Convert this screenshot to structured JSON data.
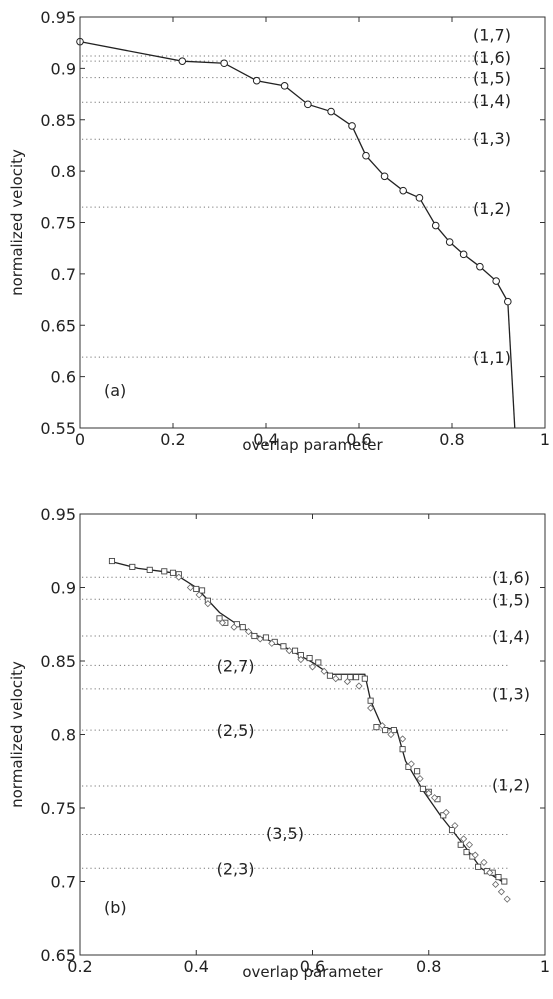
{
  "chart_data": [
    {
      "type": "line",
      "panel_label": "(a)",
      "xlabel": "overlap parameter",
      "ylabel": "normalized velocity",
      "xlim": [
        0,
        1
      ],
      "ylim": [
        0.55,
        0.95
      ],
      "xticks": [
        "0",
        "0.2",
        "0.4",
        "0.6",
        "0.8",
        "1"
      ],
      "yticks": [
        "0.55",
        "0.6",
        "0.65",
        "0.7",
        "0.75",
        "0.8",
        "0.85",
        "0.9",
        "0.95"
      ],
      "series": [
        {
          "marker": "circle",
          "x": [
            0.0,
            0.22,
            0.31,
            0.38,
            0.44,
            0.49,
            0.54,
            0.585,
            0.615,
            0.655,
            0.695,
            0.73,
            0.765,
            0.795,
            0.825,
            0.86,
            0.895,
            0.92
          ],
          "y": [
            0.926,
            0.907,
            0.905,
            0.888,
            0.883,
            0.865,
            0.858,
            0.844,
            0.815,
            0.795,
            0.781,
            0.774,
            0.747,
            0.731,
            0.719,
            0.707,
            0.693,
            0.673
          ]
        }
      ],
      "tail_line": {
        "x": [
          0.92,
          0.935
        ],
        "y": [
          0.673,
          0.55
        ]
      },
      "mode_lines": [
        {
          "label": "(1,7)",
          "y": 0.912
        },
        {
          "label": "(1,6)",
          "y": 0.907
        },
        {
          "label": "(1,5)",
          "y": 0.891
        },
        {
          "label": "(1,4)",
          "y": 0.867
        },
        {
          "label": "(1,3)",
          "y": 0.831
        },
        {
          "label": "(1,2)",
          "y": 0.765
        },
        {
          "label": "(1,1)",
          "y": 0.619
        }
      ],
      "mode_label_y": {
        "(1,7)": 0.933,
        "(1,6)": 0.911,
        "(1,5)": 0.891,
        "(1,4)": 0.869,
        "(1,3)": 0.832,
        "(1,2)": 0.764,
        "(1,1)": 0.619
      }
    },
    {
      "type": "line",
      "panel_label": "(b)",
      "xlabel": "overlap parameter",
      "ylabel": "normalized velocity",
      "xlim": [
        0.2,
        1
      ],
      "ylim": [
        0.65,
        0.95
      ],
      "xticks": [
        "0.2",
        "0.4",
        "0.6",
        "0.8",
        "1"
      ],
      "yticks": [
        "0.65",
        "0.7",
        "0.75",
        "0.8",
        "0.85",
        "0.9",
        "0.95"
      ],
      "series": [
        {
          "marker": "square",
          "x": [
            0.255,
            0.29,
            0.32,
            0.345,
            0.36,
            0.37,
            0.4,
            0.41,
            0.42,
            0.44,
            0.45,
            0.47,
            0.48,
            0.5,
            0.52,
            0.535,
            0.55,
            0.57,
            0.58,
            0.595,
            0.61,
            0.63,
            0.645,
            0.665,
            0.675,
            0.69,
            0.7,
            0.71,
            0.725,
            0.74,
            0.755,
            0.765,
            0.78,
            0.79,
            0.8,
            0.815,
            0.825,
            0.84,
            0.855,
            0.865,
            0.875,
            0.885,
            0.9,
            0.91,
            0.92,
            0.93
          ],
          "y": [
            0.918,
            0.914,
            0.912,
            0.911,
            0.91,
            0.909,
            0.899,
            0.898,
            0.891,
            0.879,
            0.876,
            0.875,
            0.873,
            0.867,
            0.866,
            0.863,
            0.86,
            0.857,
            0.854,
            0.852,
            0.849,
            0.84,
            0.839,
            0.839,
            0.839,
            0.838,
            0.823,
            0.805,
            0.803,
            0.803,
            0.79,
            0.778,
            0.775,
            0.763,
            0.761,
            0.756,
            0.745,
            0.735,
            0.725,
            0.72,
            0.717,
            0.71,
            0.707,
            0.706,
            0.703,
            0.7
          ]
        },
        {
          "marker": "diamond",
          "x": [
            0.37,
            0.39,
            0.405,
            0.42,
            0.445,
            0.465,
            0.49,
            0.51,
            0.53,
            0.56,
            0.58,
            0.6,
            0.62,
            0.64,
            0.66,
            0.68,
            0.7,
            0.72,
            0.735,
            0.755,
            0.77,
            0.785,
            0.8,
            0.81,
            0.83,
            0.845,
            0.86,
            0.87,
            0.88,
            0.895,
            0.905,
            0.915,
            0.925,
            0.935
          ],
          "y": [
            0.907,
            0.9,
            0.895,
            0.889,
            0.876,
            0.873,
            0.87,
            0.865,
            0.862,
            0.857,
            0.851,
            0.846,
            0.843,
            0.838,
            0.836,
            0.833,
            0.818,
            0.806,
            0.8,
            0.797,
            0.78,
            0.77,
            0.76,
            0.757,
            0.747,
            0.738,
            0.729,
            0.725,
            0.718,
            0.713,
            0.706,
            0.698,
            0.693,
            0.688
          ]
        }
      ],
      "line": {
        "x": [
          0.25,
          0.3,
          0.36,
          0.4,
          0.44,
          0.47,
          0.5,
          0.55,
          0.6,
          0.63,
          0.69,
          0.7,
          0.72,
          0.745,
          0.76,
          0.79,
          0.82,
          0.86,
          0.89,
          0.93
        ],
        "y": [
          0.918,
          0.913,
          0.91,
          0.9,
          0.883,
          0.875,
          0.868,
          0.86,
          0.849,
          0.841,
          0.841,
          0.823,
          0.805,
          0.803,
          0.782,
          0.762,
          0.745,
          0.725,
          0.709,
          0.699
        ]
      },
      "mode_lines": [
        {
          "label": "(1,6)",
          "y": 0.907
        },
        {
          "label": "(1,5)",
          "y": 0.892
        },
        {
          "label": "(1,4)",
          "y": 0.867
        },
        {
          "label": "(2,7)",
          "y": 0.847
        },
        {
          "label": "(1,3)",
          "y": 0.831
        },
        {
          "label": "(2,5)",
          "y": 0.803
        },
        {
          "label": "(1,2)",
          "y": 0.765
        },
        {
          "label": "(3,5)",
          "y": 0.732
        },
        {
          "label": "(2,3)",
          "y": 0.709
        }
      ],
      "mode_label_pos": {
        "(1,6)": [
          0.96,
          0.907
        ],
        "(1,5)": [
          0.96,
          0.892
        ],
        "(1,4)": [
          0.96,
          0.867
        ],
        "(1,3)": [
          0.96,
          0.828
        ],
        "(1,2)": [
          0.96,
          0.766
        ],
        "(2,7)": [
          0.435,
          0.847
        ],
        "(2,5)": [
          0.435,
          0.803
        ],
        "(3,5)": [
          0.52,
          0.733
        ],
        "(2,3)": [
          0.435,
          0.709
        ]
      }
    }
  ]
}
